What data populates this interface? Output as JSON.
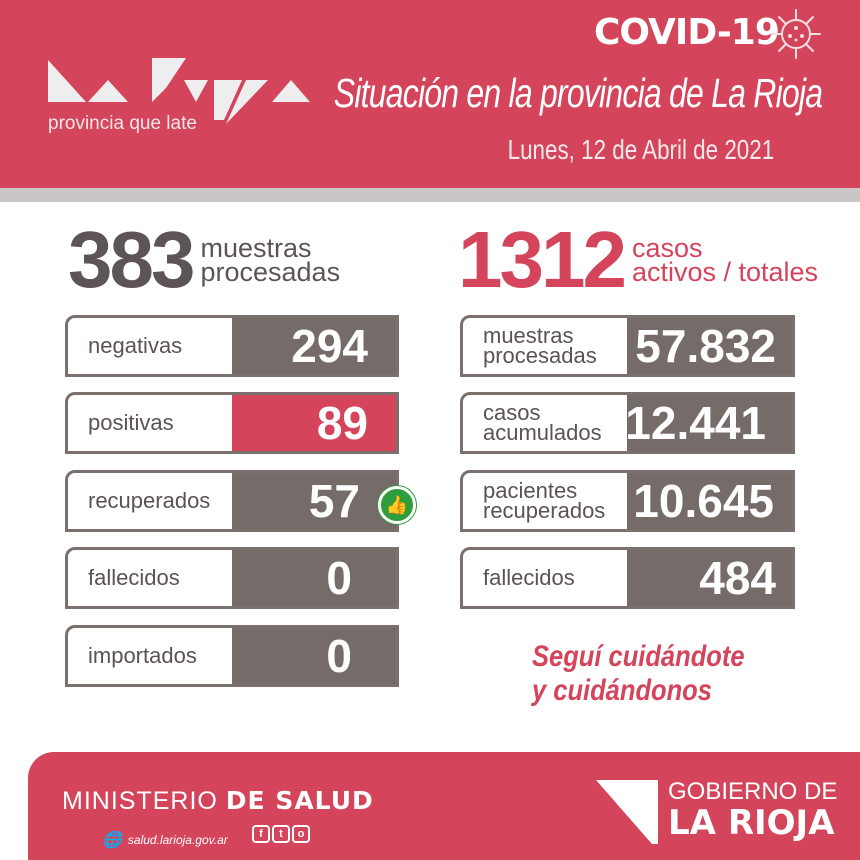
{
  "header": {
    "tagline": "provincia que late",
    "covid": "COVID-19",
    "title": "Situación en la provincia de La Rioja",
    "date": "Lunes,  12 de Abril de 2021",
    "logo_text": "La Rioja"
  },
  "daily": {
    "total": "383",
    "total_label_1": "muestras",
    "total_label_2": "procesadas",
    "items": [
      {
        "label": "negativas",
        "value": "294"
      },
      {
        "label": "positivas",
        "value": "89"
      },
      {
        "label": "recuperados",
        "value": "57"
      },
      {
        "label": "fallecidos",
        "value": "0"
      },
      {
        "label": "importados",
        "value": "0"
      }
    ]
  },
  "cumulative": {
    "total": "1312",
    "total_label_1": "casos",
    "total_label_2": "activos / totales",
    "items": [
      {
        "label_1": "muestras",
        "label_2": "procesadas",
        "value": "57.832"
      },
      {
        "label_1": "casos",
        "label_2": "acumulados",
        "value": "12.441"
      },
      {
        "label_1": "pacientes",
        "label_2": "recuperados",
        "value": "10.645"
      },
      {
        "label_1": "fallecidos",
        "label_2": "",
        "value": "484"
      }
    ]
  },
  "slogan": {
    "line1": "Seguí cuidándote",
    "line2": "y cuidándonos"
  },
  "footer": {
    "ministerio": "MINISTERIO",
    "de_salud": "DE SALUD",
    "website": "salud.larioja.gov.ar",
    "social": [
      "f",
      "t",
      "o"
    ],
    "gob_1": "GOBIERNO DE",
    "gob_2": "LA RIOJA"
  },
  "colors": {
    "brand_red": "#d4445b",
    "box_gray": "#756b68",
    "thumb_green": "#2e9d3c"
  },
  "icons": {
    "virus": "virus-icon",
    "thumb": "thumbs-up-icon",
    "globe": "globe-icon"
  }
}
